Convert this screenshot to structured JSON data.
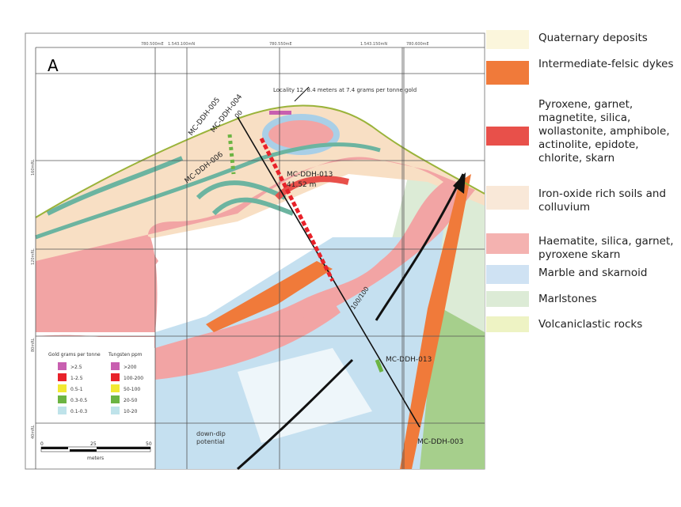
{
  "panel_label": "A",
  "grid_top_labels": [
    "780.500mE",
    "1.543.100mN",
    "780.550mE",
    "1.543.150mN",
    "780.600mE"
  ],
  "grid_left_labels": [
    "160mRL",
    "120mRL",
    "80mRL",
    "40mRL"
  ],
  "annotation_locality": "Locality 12, 8.4 meters at 7.4 grams per tonne gold",
  "drill_holes": [
    "MC-DDH-005",
    "MC-DDH-004",
    "MC-DDH-006",
    "MC-DDH-013",
    "MC-DDH-013",
    "MC-DDH-003"
  ],
  "intercept_length": "41.52 m",
  "hole_collar_label": "00",
  "depth_label": "100/100",
  "down_dip_label": [
    "down-dip",
    "potential"
  ],
  "assay_legend": {
    "gold_title": "Gold grams per tonne",
    "tungsten_title": "Tungsten ppm",
    "gold": [
      ">2.5",
      "1-2.5",
      "0.5-1",
      "0.3-0.5",
      "0.1-0.3"
    ],
    "tungsten": [
      ">200",
      "100-200",
      "50-100",
      "20-50",
      "10-20"
    ],
    "colors": [
      "#c85fb0",
      "#e8222a",
      "#f2e832",
      "#6cb443",
      "#bfe3ea"
    ]
  },
  "scale_bar": {
    "ticks": [
      "0",
      "25",
      "50"
    ],
    "unit": "meters"
  },
  "lithology_legend": [
    {
      "label": "Quaternary deposits",
      "color": "#fbf6dc"
    },
    {
      "label": "Intermediate-felsic dykes",
      "color": "#f07a3a"
    },
    {
      "label": "Pyroxene, garnet, magnetite, silica, wollastonite, amphibole, actinolite, epidote, chlorite, skarn",
      "color": "#e8504a"
    },
    {
      "label": "Iron-oxide rich soils and colluvium",
      "color": "#f9e8d8"
    },
    {
      "label": "Haematite, silica, garnet, pyroxene skarn",
      "color": "#f4b2b0"
    },
    {
      "label": "Marble and skarnoid",
      "color": "#cfe2f3"
    },
    {
      "label": "Marlstones",
      "color": "#dcebd6"
    },
    {
      "label": "Volcaniclastic rocks",
      "color": "#eef3c4"
    }
  ]
}
